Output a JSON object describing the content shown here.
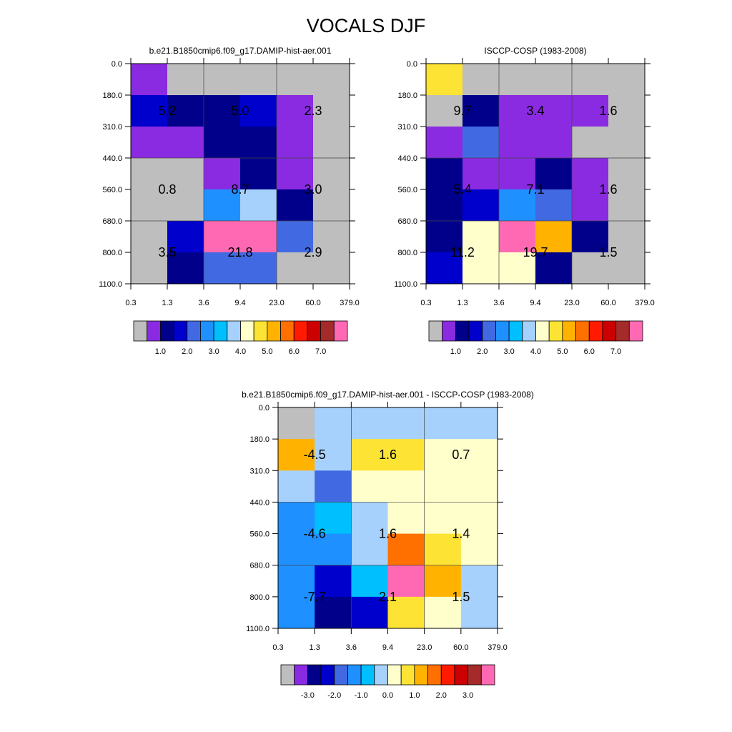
{
  "title": "VOCALS DJF",
  "chart_data": [
    {
      "type": "heatmap",
      "title": "b.e21.B1850cmip6.f09_g17.DAMIP-hist-aer.001",
      "x_ticks": [
        "0.3",
        "1.3",
        "3.6",
        "9.4",
        "23.0",
        "60.0",
        "379.0"
      ],
      "y_ticks": [
        "0.0",
        "180.0",
        "310.0",
        "440.0",
        "560.0",
        "680.0",
        "800.0",
        "1100.0"
      ],
      "cell_colors": [
        [
          "#8a2be2",
          "#bebebe",
          "#bebebe",
          "#bebebe",
          "#bebebe",
          "#bebebe"
        ],
        [
          "#0000cd",
          "#00008b",
          "#00008b",
          "#0000cd",
          "#8a2be2",
          "#bebebe"
        ],
        [
          "#8a2be2",
          "#8a2be2",
          "#00008b",
          "#00008b",
          "#8a2be2",
          "#bebebe"
        ],
        [
          "#bebebe",
          "#bebebe",
          "#8a2be2",
          "#00008b",
          "#8a2be2",
          "#bebebe"
        ],
        [
          "#bebebe",
          "#bebebe",
          "#1e90ff",
          "#a6d1fd",
          "#00008b",
          "#bebebe"
        ],
        [
          "#bebebe",
          "#0000cd",
          "#ff69b4",
          "#ff69b4",
          "#4169e1",
          "#bebebe"
        ],
        [
          "#bebebe",
          "#00008b",
          "#4169e1",
          "#4169e1",
          "#bebebe",
          "#bebebe"
        ]
      ],
      "block_values": [
        [
          "5.2",
          "5.0",
          "2.3"
        ],
        [
          "0.8",
          "8.7",
          "3.0"
        ],
        [
          "3.5",
          "21.8",
          "2.9"
        ]
      ],
      "colorbar": {
        "colors": [
          "#bebebe",
          "#8a2be2",
          "#00008b",
          "#0000cd",
          "#4169e1",
          "#1e90ff",
          "#00bfff",
          "#a6d1fd",
          "#ffffcc",
          "#fde434",
          "#ffb300",
          "#ff7000",
          "#ff1a00",
          "#cc0000",
          "#a52a2a",
          "#ff69b4"
        ],
        "labels": [
          "1.0",
          "2.0",
          "3.0",
          "4.0",
          "5.0",
          "6.0",
          "7.0"
        ]
      }
    },
    {
      "type": "heatmap",
      "title": "ISCCP-COSP (1983-2008)",
      "x_ticks": [
        "0.3",
        "1.3",
        "3.6",
        "9.4",
        "23.0",
        "60.0",
        "379.0"
      ],
      "y_ticks": [
        "0.0",
        "180.0",
        "310.0",
        "440.0",
        "560.0",
        "680.0",
        "800.0",
        "1100.0"
      ],
      "cell_colors": [
        [
          "#fde434",
          "#bebebe",
          "#bebebe",
          "#bebebe",
          "#bebebe",
          "#bebebe"
        ],
        [
          "#bebebe",
          "#00008b",
          "#8a2be2",
          "#8a2be2",
          "#8a2be2",
          "#bebebe"
        ],
        [
          "#8a2be2",
          "#4169e1",
          "#8a2be2",
          "#8a2be2",
          "#bebebe",
          "#bebebe"
        ],
        [
          "#00008b",
          "#8a2be2",
          "#8a2be2",
          "#00008b",
          "#8a2be2",
          "#bebebe"
        ],
        [
          "#00008b",
          "#0000cd",
          "#1e90ff",
          "#4169e1",
          "#8a2be2",
          "#bebebe"
        ],
        [
          "#00008b",
          "#ffffcc",
          "#ff69b4",
          "#ffb300",
          "#00008b",
          "#bebebe"
        ],
        [
          "#0000cd",
          "#ffffcc",
          "#ffffcc",
          "#00008b",
          "#bebebe",
          "#bebebe"
        ]
      ],
      "block_values": [
        [
          "9.7",
          "3.4",
          "1.6"
        ],
        [
          "5.4",
          "7.1",
          "1.6"
        ],
        [
          "11.2",
          "19.7",
          "1.5"
        ]
      ],
      "colorbar": {
        "colors": [
          "#bebebe",
          "#8a2be2",
          "#00008b",
          "#0000cd",
          "#4169e1",
          "#1e90ff",
          "#00bfff",
          "#a6d1fd",
          "#ffffcc",
          "#fde434",
          "#ffb300",
          "#ff7000",
          "#ff1a00",
          "#cc0000",
          "#a52a2a",
          "#ff69b4"
        ],
        "labels": [
          "1.0",
          "2.0",
          "3.0",
          "4.0",
          "5.0",
          "6.0",
          "7.0"
        ]
      }
    },
    {
      "type": "heatmap",
      "title": "b.e21.B1850cmip6.f09_g17.DAMIP-hist-aer.001 - ISCCP-COSP (1983-2008)",
      "x_ticks": [
        "0.3",
        "1.3",
        "3.6",
        "9.4",
        "23.0",
        "60.0",
        "379.0"
      ],
      "y_ticks": [
        "0.0",
        "180.0",
        "310.0",
        "440.0",
        "560.0",
        "680.0",
        "800.0",
        "1100.0"
      ],
      "cell_colors": [
        [
          "#bebebe",
          "#a6d1fd",
          "#a6d1fd",
          "#a6d1fd",
          "#a6d1fd",
          "#a6d1fd"
        ],
        [
          "#ffb300",
          "#a6d1fd",
          "#fde434",
          "#fde434",
          "#ffffcc",
          "#ffffcc"
        ],
        [
          "#a6d1fd",
          "#4169e1",
          "#ffffcc",
          "#ffffcc",
          "#ffffcc",
          "#ffffcc"
        ],
        [
          "#1e90ff",
          "#00bfff",
          "#a6d1fd",
          "#ffffcc",
          "#ffffcc",
          "#ffffcc"
        ],
        [
          "#1e90ff",
          "#1e90ff",
          "#a6d1fd",
          "#ff7000",
          "#fde434",
          "#ffffcc"
        ],
        [
          "#1e90ff",
          "#0000cd",
          "#00bfff",
          "#ff69b4",
          "#ffb300",
          "#a6d1fd"
        ],
        [
          "#1e90ff",
          "#00008b",
          "#0000cd",
          "#fde434",
          "#ffffcc",
          "#a6d1fd"
        ]
      ],
      "block_values": [
        [
          "-4.5",
          "1.6",
          "0.7"
        ],
        [
          "-4.6",
          "1.6",
          "1.4"
        ],
        [
          "-7.7",
          "2.1",
          "1.5"
        ]
      ],
      "colorbar": {
        "colors": [
          "#bebebe",
          "#8a2be2",
          "#00008b",
          "#0000cd",
          "#4169e1",
          "#1e90ff",
          "#00bfff",
          "#a6d1fd",
          "#ffffcc",
          "#fde434",
          "#ffb300",
          "#ff7000",
          "#ff1a00",
          "#cc0000",
          "#a52a2a",
          "#ff69b4"
        ],
        "labels": [
          "-3.0",
          "-2.0",
          "-1.0",
          "0.0",
          "1.0",
          "2.0",
          "3.0"
        ]
      }
    }
  ]
}
